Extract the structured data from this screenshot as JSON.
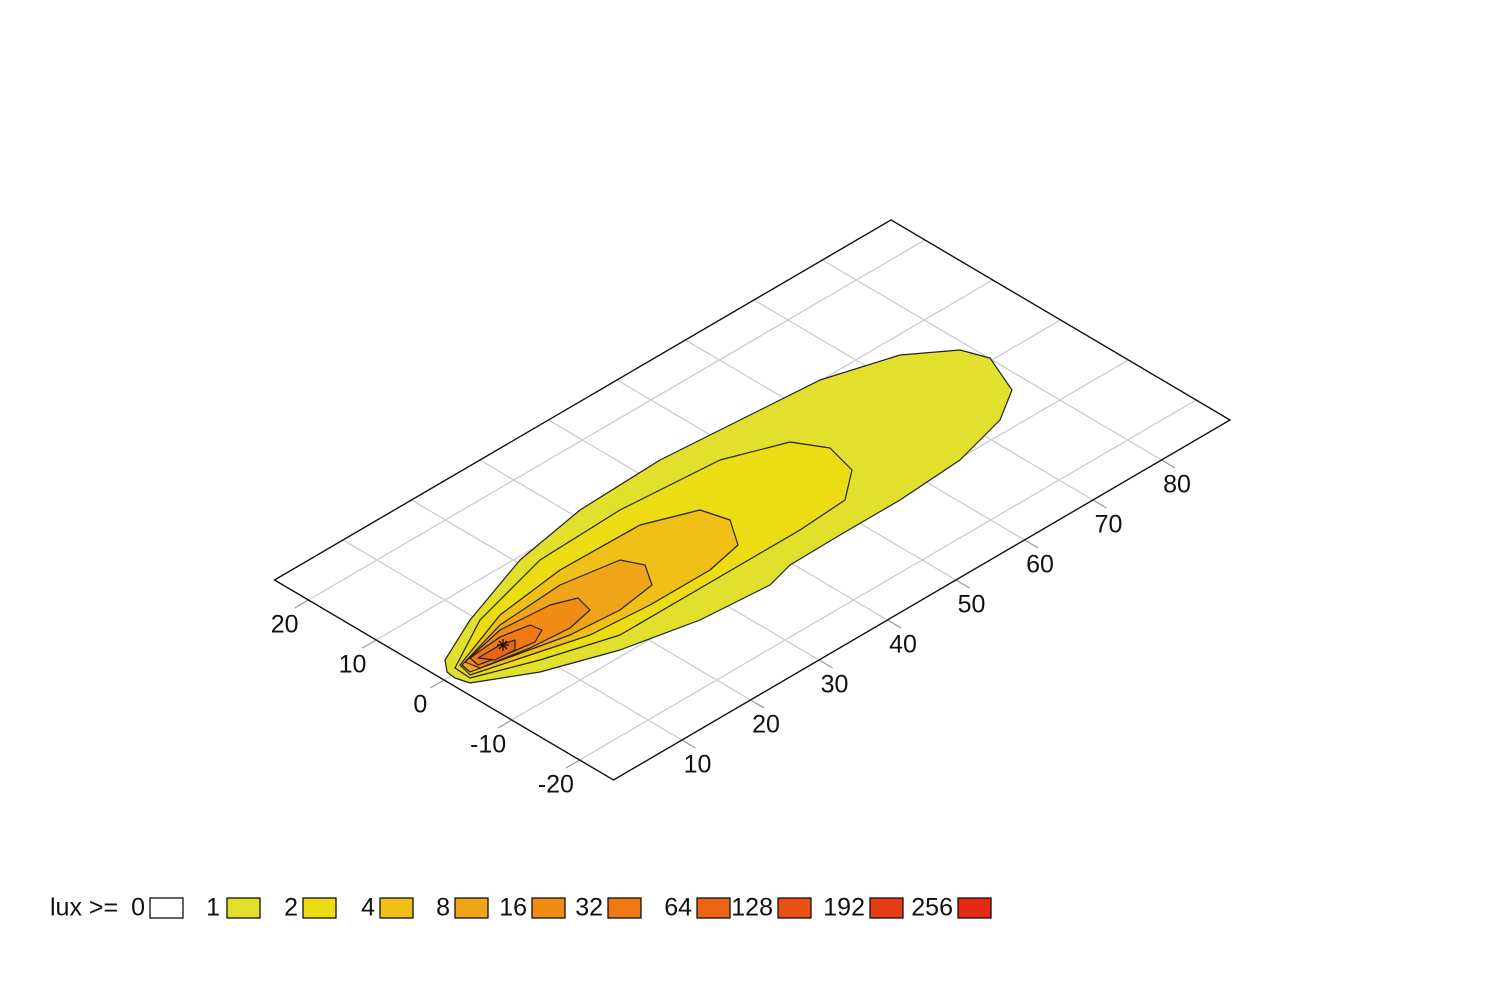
{
  "chart_data": {
    "type": "isolux",
    "xlim": [
      0,
      90
    ],
    "xticks": [
      10,
      20,
      30,
      40,
      50,
      60,
      70,
      80
    ],
    "ylim": [
      -25,
      25
    ],
    "yticks": [
      -20,
      -10,
      0,
      10,
      20
    ],
    "grid": true,
    "legend_label": "lux >=",
    "levels": [
      0,
      1,
      2,
      4,
      8,
      16,
      32,
      64,
      128,
      192,
      256
    ],
    "colors": [
      "#ffffff",
      "#e1e12d",
      "#ecdc14",
      "#f0c019",
      "#f0a519",
      "#f08c14",
      "#ee7814",
      "#ec6414",
      "#e85014",
      "#e63c14",
      "#e62814"
    ]
  }
}
